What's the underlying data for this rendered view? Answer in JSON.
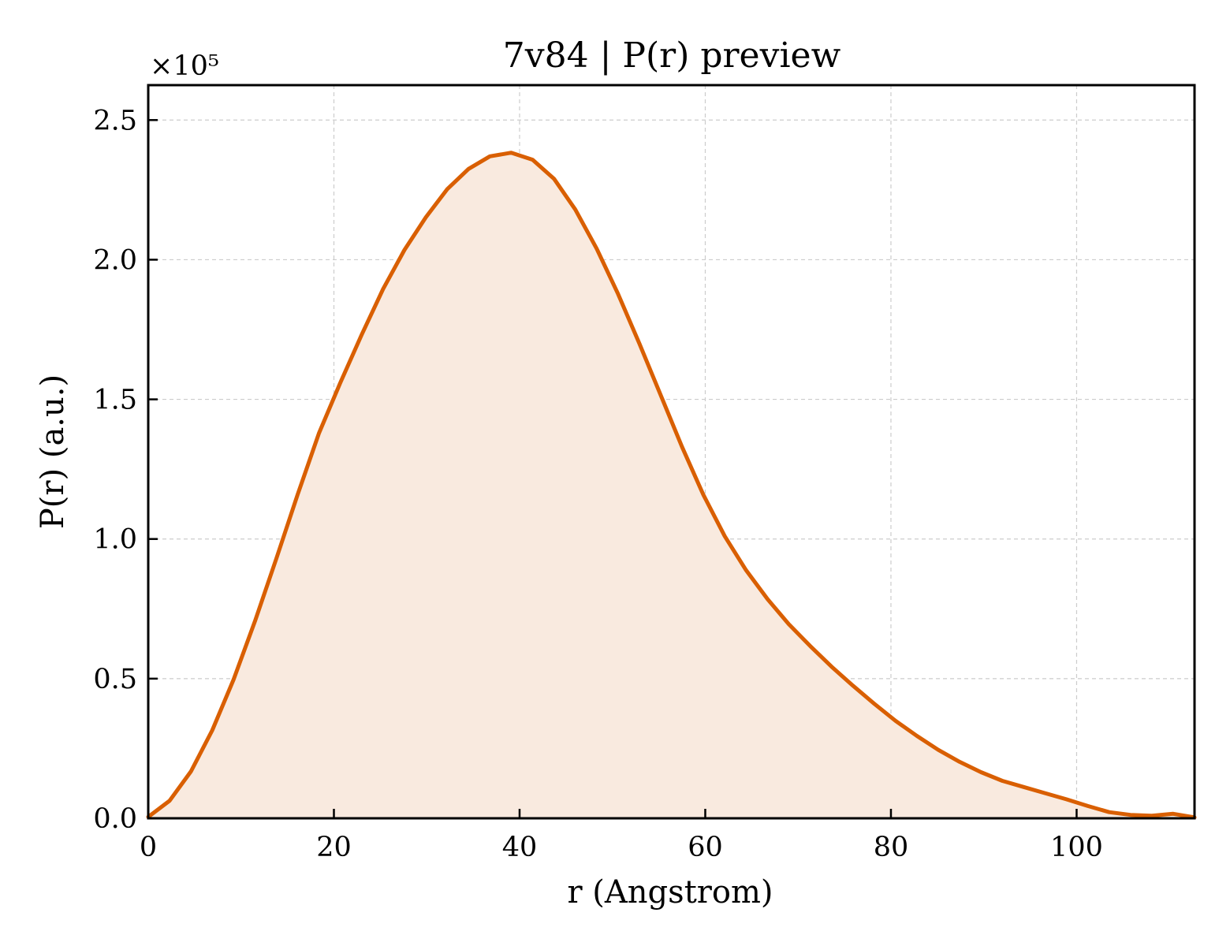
{
  "chart_data": {
    "type": "area",
    "title": "7v84 | P(r) preview",
    "xlabel": "r (Angstrom)",
    "ylabel": "P(r) (a.u.)",
    "y_scale_label": "×10⁵",
    "y_scale_factor": 100000,
    "xlim": [
      0,
      112.7
    ],
    "ylim": [
      0,
      262500
    ],
    "x_ticks": [
      0,
      20,
      40,
      60,
      80,
      100
    ],
    "x_tick_labels": [
      "0",
      "20",
      "40",
      "60",
      "80",
      "100"
    ],
    "y_ticks": [
      0,
      50000,
      100000,
      150000,
      200000,
      250000
    ],
    "y_tick_labels": [
      "0.0",
      "0.5",
      "1.0",
      "1.5",
      "2.0",
      "2.5"
    ],
    "grid": true,
    "line_color": "#d95f02",
    "fill_color": "#f9eadf",
    "series": [
      {
        "x": [
          0,
          2.3,
          4.6,
          6.9,
          9.2,
          11.5,
          13.8,
          16.1,
          18.4,
          20.7,
          23.0,
          25.3,
          27.6,
          29.9,
          32.2,
          34.5,
          36.8,
          39.1,
          41.4,
          43.7,
          46.0,
          48.3,
          50.6,
          52.9,
          55.2,
          57.5,
          59.8,
          62.1,
          64.4,
          66.7,
          69.0,
          71.3,
          73.6,
          75.9,
          78.2,
          80.5,
          82.8,
          85.1,
          87.4,
          89.7,
          92.0,
          94.3,
          96.6,
          98.9,
          101.2,
          103.5,
          105.8,
          108.1,
          110.4,
          112.7
        ],
        "y": [
          500,
          6300,
          16800,
          31500,
          49700,
          70600,
          93000,
          116000,
          138000,
          156000,
          173200,
          189500,
          203500,
          215200,
          225200,
          232500,
          237000,
          238300,
          235800,
          229000,
          218000,
          204000,
          187800,
          170000,
          151500,
          133000,
          115800,
          101000,
          88800,
          78500,
          69500,
          61700,
          54300,
          47500,
          41000,
          34900,
          29500,
          24500,
          20200,
          16500,
          13400,
          11200,
          9000,
          6800,
          4400,
          2200,
          1200,
          900,
          1600,
          300
        ]
      }
    ]
  }
}
